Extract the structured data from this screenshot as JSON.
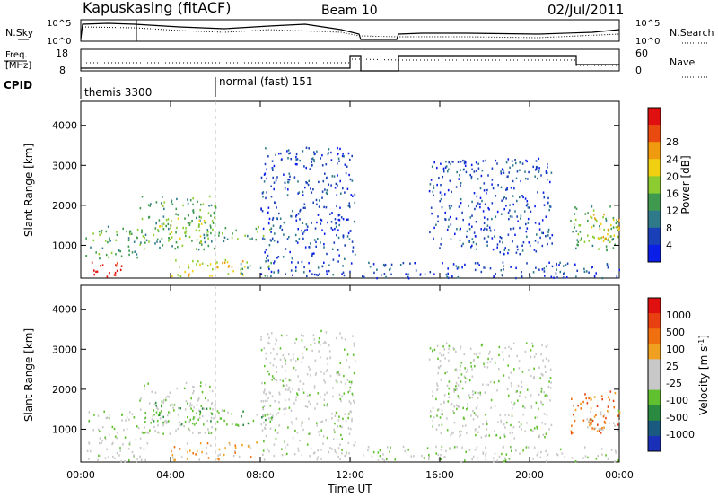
{
  "header": {
    "title": "Kapuskasing (fitACF)",
    "beam": "Beam 10",
    "date": "02/Jul/2011"
  },
  "top_panels": {
    "nsky": {
      "label": "N.Sky",
      "ticks": [
        "10^5",
        "10^0"
      ],
      "right_label": "N.Search",
      "right_ticks": [
        "10^5",
        "10^0"
      ]
    },
    "freq": {
      "label_1": "Freq.",
      "label_2": "[MHz]",
      "ticks": [
        "18",
        "8"
      ],
      "right_label": "Nave",
      "right_ticks": [
        "60",
        "0"
      ]
    },
    "cpid": {
      "label": "CPID",
      "programs": [
        {
          "name": "themis 3300",
          "start_hour": 0
        },
        {
          "name": "normal (fast) 151",
          "start_hour": 6
        }
      ]
    }
  },
  "x_axis": {
    "label": "Time UT",
    "ticks": [
      "00:00",
      "04:00",
      "08:00",
      "12:00",
      "16:00",
      "20:00",
      "00:00"
    ],
    "range_hours": [
      0,
      24
    ]
  },
  "chart_data": [
    {
      "type": "heatmap",
      "name": "power-panel",
      "ylabel": "Slant Range [km]",
      "ylim": [
        180,
        4600
      ],
      "y_ticks": [
        "1000",
        "2000",
        "3000",
        "4000"
      ],
      "colorbar": {
        "label": "Power [dB]",
        "tick_labels": [
          "4",
          "8",
          "12",
          "16",
          "20",
          "24",
          "28"
        ],
        "colors": [
          "#0a1ee8",
          "#1a40b8",
          "#2f7a8a",
          "#3f9a50",
          "#8ccc30",
          "#f0d010",
          "#f09a10",
          "#e84a10",
          "#e01010"
        ]
      },
      "regions": [
        {
          "t": [
            0.2,
            1.8
          ],
          "r": [
            200,
            650
          ],
          "level": 8
        },
        {
          "t": [
            0.2,
            2.6
          ],
          "r": [
            650,
            1000
          ],
          "level": 3
        },
        {
          "t": [
            0.2,
            3.0
          ],
          "r": [
            1100,
            1500
          ],
          "level": 3
        },
        {
          "t": [
            2.6,
            6.0
          ],
          "r": [
            900,
            2300
          ],
          "level": 3
        },
        {
          "t": [
            3.2,
            5.5
          ],
          "r": [
            1100,
            1700
          ],
          "level": 4
        },
        {
          "t": [
            4.0,
            7.5
          ],
          "r": [
            250,
            700
          ],
          "level": 5
        },
        {
          "t": [
            5.5,
            8.6
          ],
          "r": [
            1100,
            1500
          ],
          "level": 3
        },
        {
          "t": [
            7.0,
            8.5
          ],
          "r": [
            250,
            600
          ],
          "level": 3
        },
        {
          "t": [
            8.0,
            12.2
          ],
          "r": [
            250,
            3500
          ],
          "level": 1
        },
        {
          "t": [
            12.5,
            24.0
          ],
          "r": [
            200,
            600
          ],
          "level": 1
        },
        {
          "t": [
            15.5,
            21.0
          ],
          "r": [
            800,
            3200
          ],
          "level": 1
        },
        {
          "t": [
            21.8,
            24.0
          ],
          "r": [
            900,
            2000
          ],
          "level": 3
        },
        {
          "t": [
            22.5,
            24.0
          ],
          "r": [
            1000,
            1800
          ],
          "level": 5
        }
      ]
    },
    {
      "type": "heatmap",
      "name": "velocity-panel",
      "ylabel": "Slant Range [km]",
      "ylim": [
        180,
        4600
      ],
      "y_ticks": [
        "1000",
        "2000",
        "3000",
        "4000"
      ],
      "colorbar": {
        "label": "Velocity [m s^-1]",
        "tick_labels": [
          "1000",
          "500",
          "100",
          "25",
          "-25",
          "-100",
          "-500",
          "-1000"
        ],
        "colors": [
          "#1a30b8",
          "#1a5a80",
          "#2a8a40",
          "#60c030",
          "#c8c8c8",
          "#c8c8c8",
          "#f0a020",
          "#f07010",
          "#e84010",
          "#e01010"
        ]
      },
      "regions": [
        {
          "t": [
            0.2,
            3.0
          ],
          "r": [
            200,
            1100
          ],
          "level": 4
        },
        {
          "t": [
            0.2,
            3.0
          ],
          "r": [
            1200,
            1500
          ],
          "level": 4
        },
        {
          "t": [
            2.6,
            6.0
          ],
          "r": [
            900,
            2200
          ],
          "level": 4
        },
        {
          "t": [
            3.2,
            5.8
          ],
          "r": [
            1100,
            1700
          ],
          "level": 3
        },
        {
          "t": [
            4.0,
            8.0
          ],
          "r": [
            250,
            700
          ],
          "level": 6
        },
        {
          "t": [
            5.5,
            8.6
          ],
          "r": [
            1100,
            1500
          ],
          "level": 3
        },
        {
          "t": [
            8.0,
            12.2
          ],
          "r": [
            250,
            3500
          ],
          "level": 4
        },
        {
          "t": [
            12.5,
            24.0
          ],
          "r": [
            200,
            600
          ],
          "level": 4
        },
        {
          "t": [
            15.5,
            21.0
          ],
          "r": [
            800,
            3200
          ],
          "level": 4
        },
        {
          "t": [
            21.8,
            24.0
          ],
          "r": [
            900,
            2000
          ],
          "level": 7
        },
        {
          "t": [
            22.5,
            24.0
          ],
          "r": [
            1000,
            1500
          ],
          "level": 4
        }
      ]
    }
  ]
}
